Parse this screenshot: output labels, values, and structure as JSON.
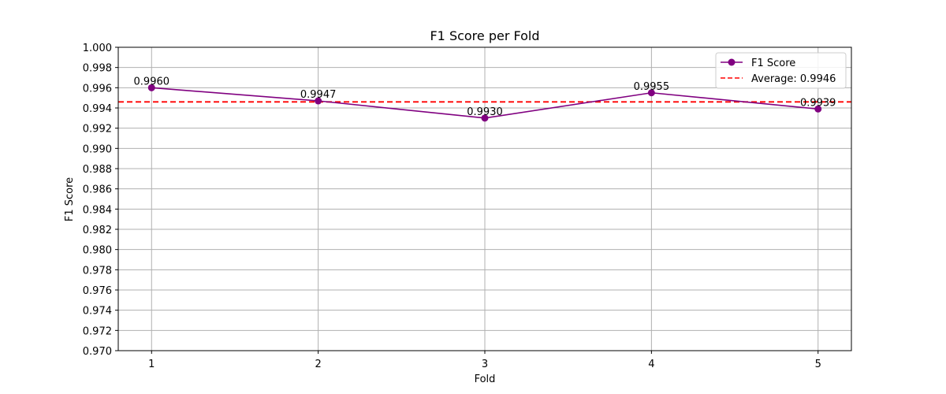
{
  "chart_data": {
    "type": "line",
    "title": "F1 Score per Fold",
    "xlabel": "Fold",
    "ylabel": "F1 Score",
    "x": [
      1,
      2,
      3,
      4,
      5
    ],
    "xticks": [
      "1",
      "2",
      "3",
      "4",
      "5"
    ],
    "xlim": [
      0.8,
      5.2
    ],
    "ylim": [
      0.97,
      1.0
    ],
    "yticks": [
      "0.970",
      "0.972",
      "0.974",
      "0.976",
      "0.978",
      "0.980",
      "0.982",
      "0.984",
      "0.986",
      "0.988",
      "0.990",
      "0.992",
      "0.994",
      "0.996",
      "0.998",
      "1.000"
    ],
    "series": [
      {
        "name": "F1 Score",
        "values": [
          0.996,
          0.9947,
          0.993,
          0.9955,
          0.9939
        ],
        "data_labels": [
          "0.9960",
          "0.9947",
          "0.9930",
          "0.9955",
          "0.9939"
        ],
        "color": "#800080",
        "marker": "circle"
      }
    ],
    "reference_lines": [
      {
        "name": "Average: 0.9946",
        "value": 0.9946,
        "color": "#ff0000",
        "style": "dashed"
      }
    ],
    "grid": true,
    "legend_position": "top-right"
  }
}
